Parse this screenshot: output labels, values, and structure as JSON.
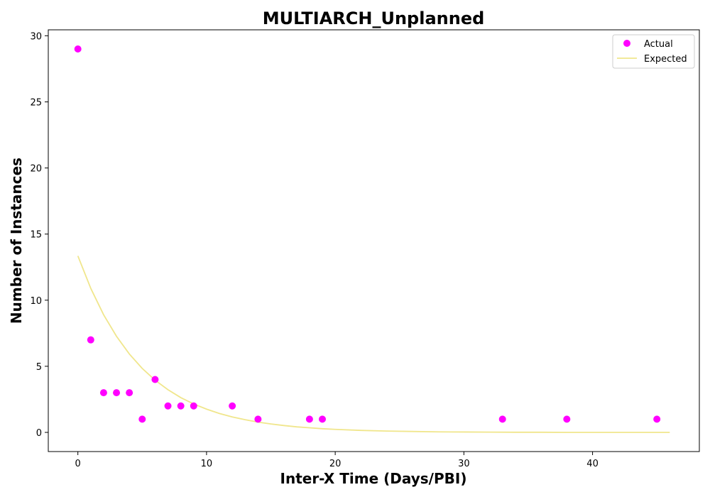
{
  "chart_data": {
    "type": "scatter",
    "title": "MULTIARCH_Unplanned",
    "xlabel": "Inter-X Time (Days/PBI)",
    "ylabel": "Number of Instances",
    "xlim": [
      -2.3,
      48.3
    ],
    "ylim": [
      -1.45,
      30.45
    ],
    "xticks": [
      0,
      10,
      20,
      30,
      40
    ],
    "yticks": [
      0,
      5,
      10,
      15,
      20,
      25,
      30
    ],
    "grid": false,
    "legend_position": "top-right",
    "series": [
      {
        "name": "Actual",
        "kind": "scatter",
        "color": "#ff00ff",
        "points": [
          [
            0,
            29
          ],
          [
            1,
            7
          ],
          [
            2,
            3
          ],
          [
            3,
            3
          ],
          [
            4,
            3
          ],
          [
            5,
            1
          ],
          [
            6,
            4
          ],
          [
            7,
            2
          ],
          [
            8,
            2
          ],
          [
            9,
            2
          ],
          [
            12,
            2
          ],
          [
            14,
            1
          ],
          [
            18,
            1
          ],
          [
            19,
            1
          ],
          [
            33,
            1
          ],
          [
            38,
            1
          ],
          [
            45,
            1
          ]
        ]
      },
      {
        "name": "Expected",
        "kind": "line",
        "color": "#f0e68c",
        "points": [
          [
            0,
            13.35
          ],
          [
            1,
            10.9
          ],
          [
            2,
            8.9
          ],
          [
            3,
            7.27
          ],
          [
            4,
            5.93
          ],
          [
            5,
            4.84
          ],
          [
            6,
            3.95
          ],
          [
            7,
            3.23
          ],
          [
            8,
            2.63
          ],
          [
            9,
            2.15
          ],
          [
            10,
            1.76
          ],
          [
            11,
            1.43
          ],
          [
            12,
            1.17
          ],
          [
            13,
            0.96
          ],
          [
            14,
            0.78
          ],
          [
            15,
            0.64
          ],
          [
            16,
            0.52
          ],
          [
            17,
            0.42
          ],
          [
            18,
            0.35
          ],
          [
            19,
            0.28
          ],
          [
            20,
            0.23
          ],
          [
            22,
            0.15
          ],
          [
            24,
            0.1
          ],
          [
            26,
            0.07
          ],
          [
            28,
            0.04
          ],
          [
            30,
            0.03
          ],
          [
            32,
            0.02
          ],
          [
            34,
            0.01
          ],
          [
            36,
            0.01
          ],
          [
            38,
            0.0
          ],
          [
            40,
            0.0
          ],
          [
            42,
            0.0
          ],
          [
            44,
            0.0
          ],
          [
            46,
            0.0
          ]
        ]
      }
    ]
  }
}
